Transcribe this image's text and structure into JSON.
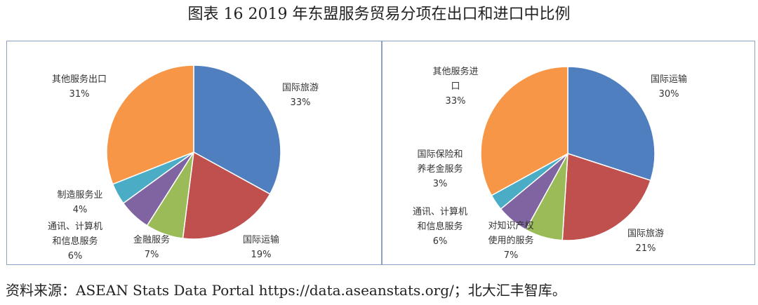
{
  "title": "图表 16  2019 年东盟服务贸易分项在出口和进口中比例",
  "source": {
    "prefix": "资料来源：",
    "text": "ASEAN Stats Data Portal https://data.aseanstats.org/",
    "suffix": "；北大汇丰智库。"
  },
  "chart_data": [
    {
      "type": "pie",
      "title": "",
      "slices": [
        {
          "label": "国际旅游",
          "value": 33,
          "percent_label": "33%",
          "color": "#4f7fbf"
        },
        {
          "label": "国际运输",
          "value": 19,
          "percent_label": "19%",
          "color": "#c0504d"
        },
        {
          "label": "金融服务",
          "value": 7,
          "percent_label": "7%",
          "color": "#9bbb59"
        },
        {
          "label": "通讯、计算机和信息服务",
          "value": 6,
          "percent_label": "6%",
          "color": "#8064a2"
        },
        {
          "label": "制造服务业",
          "value": 4,
          "percent_label": "4%",
          "color": "#4bacc6"
        },
        {
          "label": "其他服务出口",
          "value": 31,
          "percent_label": "31%",
          "color": "#f79646"
        }
      ]
    },
    {
      "type": "pie",
      "title": "",
      "slices": [
        {
          "label": "国际运输",
          "value": 30,
          "percent_label": "30%",
          "color": "#4f7fbf"
        },
        {
          "label": "国际旅游",
          "value": 21,
          "percent_label": "21%",
          "color": "#c0504d"
        },
        {
          "label": "对知识产权使用的服务",
          "value": 7,
          "percent_label": "7%",
          "color": "#9bbb59"
        },
        {
          "label": "通讯、计算机和信息服务",
          "value": 6,
          "percent_label": "6%",
          "color": "#8064a2"
        },
        {
          "label": "国际保险和养老金服务",
          "value": 3,
          "percent_label": "3%",
          "color": "#4bacc6"
        },
        {
          "label": "其他服务进口",
          "value": 33,
          "percent_label": "33%",
          "color": "#f79646"
        }
      ]
    }
  ]
}
